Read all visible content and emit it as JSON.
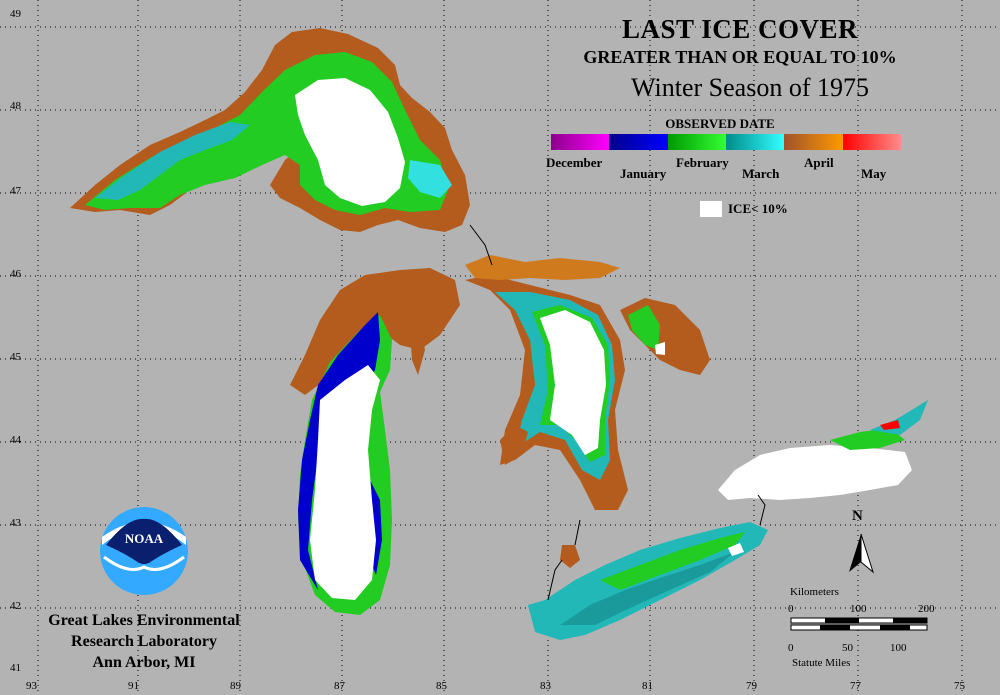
{
  "title": {
    "line1": "LAST ICE COVER",
    "line2": "GREATER THAN OR EQUAL TO 10%",
    "line3": "Winter Season of 1975"
  },
  "legend": {
    "heading": "OBSERVED DATE",
    "months": [
      {
        "label": "December",
        "color_start": "#8b008b",
        "color_end": "#ff00ff"
      },
      {
        "label": "January",
        "color_start": "#00008b",
        "color_end": "#0000ff"
      },
      {
        "label": "February",
        "color_start": "#009900",
        "color_end": "#33ff33"
      },
      {
        "label": "March",
        "color_start": "#008b8b",
        "color_end": "#33ffff"
      },
      {
        "label": "April",
        "color_start": "#a0522d",
        "color_end": "#ff9900"
      },
      {
        "label": "May",
        "color_start": "#ff0000",
        "color_end": "#ff8c8c"
      }
    ],
    "ice_label": "ICE< 10%"
  },
  "axes": {
    "latitudes": [
      "49",
      "48",
      "47",
      "46",
      "45",
      "44",
      "43",
      "42",
      "41"
    ],
    "longitudes": [
      "93",
      "91",
      "89",
      "87",
      "85",
      "83",
      "81",
      "79",
      "77",
      "75"
    ]
  },
  "scale": {
    "km_label": "Kilometers",
    "km_ticks": [
      "0",
      "100",
      "200"
    ],
    "mi_label": "Statute Miles",
    "mi_ticks": [
      "0",
      "50",
      "100"
    ]
  },
  "north_label": "N",
  "logo_text": "NOAA",
  "lab": {
    "line1": "Great Lakes Environmental",
    "line2": "Research Laboratory",
    "line3": "Ann Arbor, MI"
  },
  "colors": {
    "background": "#b3b3b3",
    "ice_free": "#ffffff",
    "december": "#cc00cc",
    "january": "#0000cc",
    "february": "#22cc22",
    "march": "#22b8b8",
    "april": "#b35c1e",
    "may": "#ff3333"
  }
}
